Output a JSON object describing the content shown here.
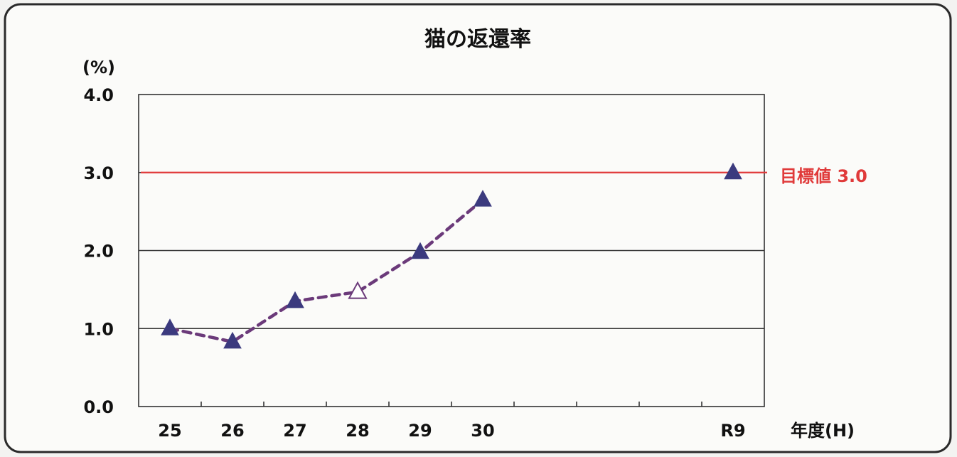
{
  "chart_data": {
    "type": "line",
    "title": "猫の返還率",
    "yunit": "(%)",
    "xunit": "年度(H)",
    "ylim": [
      0,
      4
    ],
    "yticks": [
      "0.0",
      "1.0",
      "2.0",
      "3.0",
      "4.0"
    ],
    "categories": [
      "25",
      "26",
      "27",
      "28",
      "29",
      "30",
      "",
      "",
      "",
      "R9"
    ],
    "series": [
      {
        "x": [
          "25",
          "26",
          "27",
          "28",
          "29",
          "30"
        ],
        "values": [
          1.0,
          0.83,
          1.35,
          1.47,
          1.98,
          2.65
        ],
        "marker": "triangle",
        "hollow": [
          false,
          false,
          false,
          true,
          false,
          false
        ],
        "color": "#6b3a7a",
        "marker_color": "#3b3a7e"
      }
    ],
    "target_point": {
      "x": "R9",
      "value": 3.0
    },
    "target_line": {
      "value": 3.0,
      "label": "目標値 3.0",
      "color": "#e03a3a"
    },
    "grid": true
  }
}
